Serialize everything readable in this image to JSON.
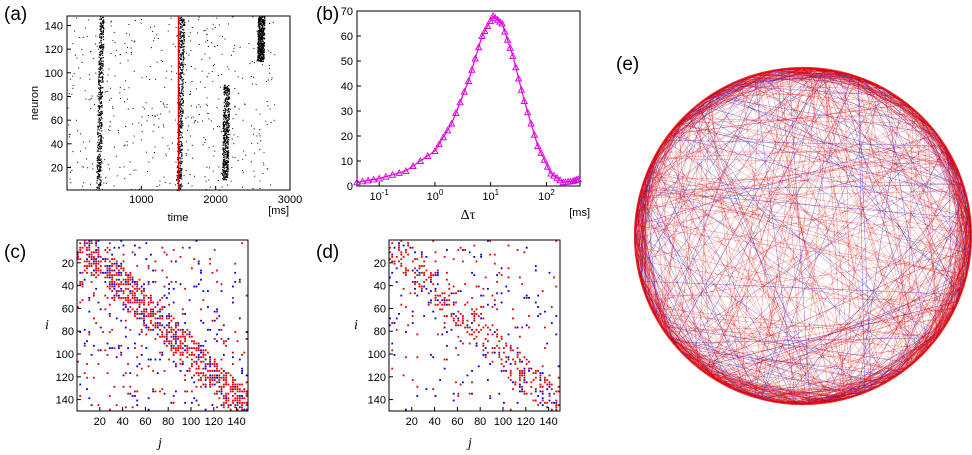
{
  "panels": {
    "a": {
      "label": "(a)",
      "chart_data": {
        "type": "scatter",
        "xlabel": "time",
        "xunit": "[ms]",
        "ylabel": "neuron",
        "xlim": [
          0,
          3000
        ],
        "ylim": [
          1,
          148
        ],
        "xticks": [
          "1000",
          "2000",
          "3000"
        ],
        "yticks": [
          "20",
          "40",
          "60",
          "80",
          "100",
          "120",
          "140"
        ],
        "marker_line": {
          "x": 1500,
          "color": "#e00000"
        },
        "bursts": [
          {
            "x": 420,
            "width": 60,
            "y_from": 1,
            "y_to": 148
          },
          {
            "x": 1500,
            "width": 70,
            "y_from": 1,
            "y_to": 148
          },
          {
            "x": 2120,
            "width": 80,
            "y_from": 10,
            "y_to": 90
          },
          {
            "x": 2600,
            "width": 90,
            "y_from": 110,
            "y_to": 148
          }
        ],
        "dot_color": "#000000"
      }
    },
    "b": {
      "label": "(b)",
      "chart_data": {
        "type": "line",
        "xlabel": "Δτ",
        "xunit": "[ms]",
        "ylabel": "",
        "scale_x": "log",
        "xlim": [
          0.04,
          400
        ],
        "ylim": [
          0,
          70
        ],
        "yticks": [
          "0",
          "10",
          "20",
          "30",
          "40",
          "50",
          "60",
          "70"
        ],
        "xticks": [
          "10^-1",
          "10^0",
          "10^1",
          "10^2"
        ],
        "color": "#e000e0",
        "marker": "triangle",
        "x": [
          0.04,
          0.1,
          0.3,
          1,
          2,
          4,
          7,
          11,
          16,
          25,
          40,
          70,
          120,
          200,
          300,
          400
        ],
        "y": [
          1.5,
          3,
          6,
          14,
          25,
          42,
          60,
          68,
          65,
          52,
          34,
          16,
          5,
          1.5,
          2,
          3
        ]
      }
    },
    "c": {
      "label": "(c)",
      "chart_data": {
        "type": "heatmap",
        "xlabel": "j",
        "ylabel": "i",
        "xlim": [
          1,
          150
        ],
        "ylim": [
          1,
          150
        ],
        "xticks": [
          "20",
          "40",
          "60",
          "80",
          "100",
          "120",
          "140"
        ],
        "yticks": [
          "20",
          "40",
          "60",
          "80",
          "100",
          "120",
          "140"
        ],
        "colors": {
          "positive": "#e00000",
          "negative": "#0000e0"
        },
        "density": 0.55
      }
    },
    "d": {
      "label": "(d)",
      "chart_data": {
        "type": "heatmap",
        "xlabel": "j",
        "ylabel": "i",
        "xlim": [
          1,
          150
        ],
        "ylim": [
          1,
          150
        ],
        "xticks": [
          "20",
          "40",
          "60",
          "80",
          "100",
          "120",
          "140"
        ],
        "yticks": [
          "20",
          "40",
          "60",
          "80",
          "100",
          "120",
          "140"
        ],
        "colors": {
          "positive": "#e00000",
          "negative": "#0000e0"
        },
        "density": 0.3
      }
    },
    "e": {
      "label": "(e)",
      "chart_data": {
        "type": "network",
        "nodes": 150,
        "edge_colors": {
          "positive": "#e00000",
          "negative": "#0000e0"
        },
        "edges_positive": 900,
        "edges_negative": 300
      }
    }
  }
}
